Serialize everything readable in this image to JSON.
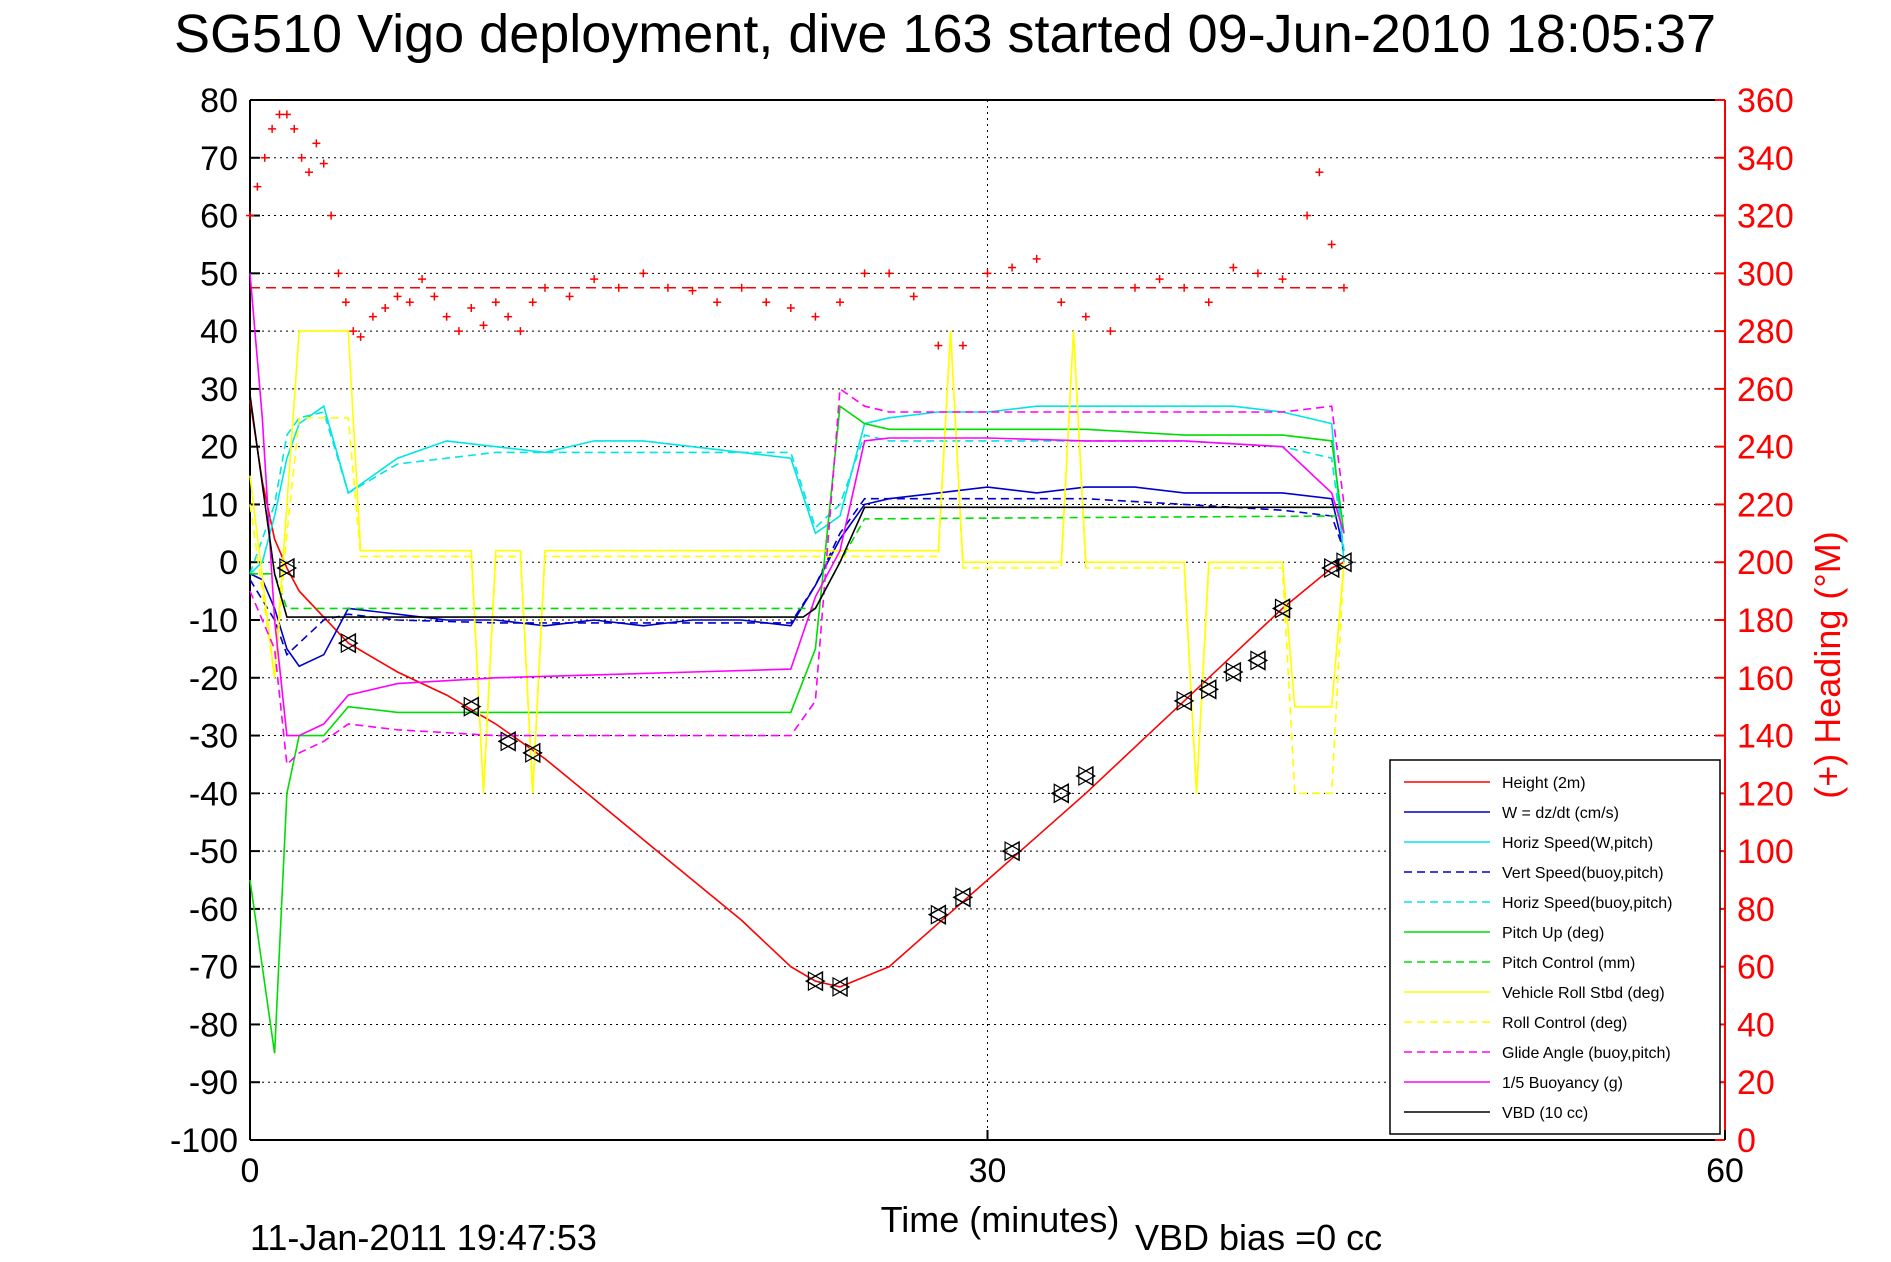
{
  "chart_data": {
    "type": "line",
    "title": "SG510 Vigo deployment, dive 163 started 09-Jun-2010 18:05:37",
    "xlabel": "Time (minutes)",
    "ylabel_right": "(+) Heading (°M)",
    "xlim": [
      0,
      60
    ],
    "ylim": [
      -100,
      80
    ],
    "y2lim": [
      0,
      360
    ],
    "xticks": [
      "0",
      "30",
      "60"
    ],
    "yticks": [
      "80",
      "70",
      "60",
      "50",
      "40",
      "30",
      "20",
      "10",
      "0",
      "-10",
      "-20",
      "-30",
      "-40",
      "-50",
      "-60",
      "-70",
      "-80",
      "-90",
      "-100"
    ],
    "y2ticks": [
      "360",
      "340",
      "320",
      "300",
      "280",
      "260",
      "240",
      "220",
      "200",
      "180",
      "160",
      "140",
      "120",
      "100",
      "80",
      "60",
      "40",
      "20",
      "0"
    ],
    "grid": true,
    "legend_position": "bottom-right",
    "footer_date": "11-Jan-2011 19:47:53",
    "vbd_bias": "VBD bias =0 cc",
    "heading_reference": 295,
    "series": [
      {
        "name": "Height (2m)",
        "color": "#ff0000",
        "style": "solid",
        "x": [
          0,
          0.5,
          1,
          1.5,
          2,
          4,
          6,
          8,
          10,
          12,
          14,
          16,
          18,
          20,
          22,
          23,
          24,
          26,
          28,
          30,
          32,
          34,
          36,
          38,
          40,
          42,
          44,
          44.5
        ],
        "y": [
          28,
          14,
          4,
          -1,
          -5,
          -14,
          -19,
          -23,
          -28,
          -34,
          -41,
          -48,
          -55,
          -62,
          -70,
          -72.5,
          -73.5,
          -70,
          -62.5,
          -55,
          -47.5,
          -40,
          -32,
          -24,
          -16,
          -8,
          -1,
          0
        ]
      },
      {
        "name": "W = dz/dt (cm/s)",
        "color": "#0000cc",
        "style": "solid",
        "x": [
          0,
          0.5,
          1,
          1.5,
          2,
          3,
          4,
          6,
          8,
          10,
          12,
          14,
          16,
          18,
          20,
          22,
          23,
          24,
          25,
          26,
          28,
          30,
          32,
          34,
          36,
          38,
          40,
          42,
          44,
          44.5
        ],
        "y": [
          -2,
          -3,
          -8,
          -15,
          -18,
          -16,
          -8,
          -9,
          -10,
          -10,
          -11,
          -10,
          -11,
          -10,
          -10,
          -11,
          -4,
          4,
          10,
          11,
          12,
          13,
          12,
          13,
          13,
          12,
          12,
          12,
          11,
          2
        ]
      },
      {
        "name": "Horiz Speed(W,pitch)",
        "color": "#00e5e5",
        "style": "solid",
        "x": [
          0,
          0.5,
          1,
          1.5,
          2,
          3,
          4,
          5,
          6,
          8,
          10,
          12,
          14,
          16,
          18,
          20,
          22,
          23,
          24,
          25,
          26,
          28,
          30,
          32,
          34,
          36,
          38,
          40,
          42,
          44,
          44.5
        ],
        "y": [
          -2,
          0,
          8,
          18,
          24,
          27,
          12,
          15,
          18,
          21,
          20,
          19,
          21,
          21,
          20,
          19,
          18,
          5,
          8,
          24,
          25,
          26,
          26,
          27,
          27,
          27,
          27,
          27,
          26,
          24,
          0
        ]
      },
      {
        "name": "Vert Speed(buoy,pitch)",
        "color": "#0000cc",
        "style": "dashed",
        "x": [
          0,
          1,
          1.5,
          2,
          3,
          4,
          6,
          10,
          14,
          18,
          22,
          23,
          24,
          25,
          26,
          30,
          34,
          38,
          42,
          44,
          44.5
        ],
        "y": [
          -3,
          -10,
          -16,
          -14,
          -10,
          -9,
          -10,
          -10.5,
          -10.5,
          -10.5,
          -10.5,
          -4,
          5,
          11,
          11,
          11,
          11,
          10,
          9,
          8,
          2
        ]
      },
      {
        "name": "Horiz Speed(buoy,pitch)",
        "color": "#00e5e5",
        "style": "dashed",
        "x": [
          0,
          1,
          1.5,
          2,
          3,
          4,
          6,
          10,
          14,
          18,
          22,
          23,
          24,
          25,
          26,
          30,
          34,
          38,
          42,
          44,
          44.5
        ],
        "y": [
          -2,
          10,
          22,
          25,
          26,
          12,
          17,
          19,
          19,
          19,
          19,
          6,
          10,
          22,
          21,
          21,
          21,
          21,
          20,
          18,
          2
        ]
      },
      {
        "name": "Pitch Up (deg)",
        "color": "#00dd00",
        "style": "solid",
        "x": [
          0,
          0.5,
          1,
          1.5,
          2,
          3,
          4,
          6,
          10,
          14,
          18,
          22,
          23,
          24,
          25,
          26,
          30,
          34,
          38,
          42,
          44,
          44.5
        ],
        "y": [
          -55,
          -70,
          -85,
          -40,
          -30,
          -30,
          -25,
          -26,
          -26,
          -26,
          -26,
          -26,
          -15,
          27,
          24,
          23,
          23,
          23,
          22,
          22,
          21,
          5
        ]
      },
      {
        "name": "Pitch Control (mm)",
        "color": "#00dd00",
        "style": "dashed",
        "x": [
          0,
          1,
          1.5,
          22.5,
          23,
          24,
          25,
          44,
          44.5
        ],
        "y": [
          -2,
          -2,
          -8,
          -8,
          -8,
          0,
          7.5,
          8,
          8
        ]
      },
      {
        "name": "Vehicle Roll Stbd (deg)",
        "color": "#ffff00",
        "style": "solid",
        "x": [
          0,
          1,
          1.5,
          2,
          4,
          4.5,
          9,
          9.5,
          10,
          11,
          11.5,
          12,
          23,
          24,
          28,
          28.5,
          29,
          33,
          33.5,
          34,
          38,
          38.5,
          39,
          42,
          42.5,
          44,
          44.5
        ],
        "y": [
          15,
          -20,
          10,
          40,
          40,
          2,
          2,
          -40,
          2,
          2,
          -40,
          2,
          2,
          2,
          2,
          40,
          0,
          0,
          40,
          0,
          0,
          -40,
          0,
          0,
          -25,
          -25,
          0
        ]
      },
      {
        "name": "Roll Control (deg)",
        "color": "#ffff00",
        "style": "dashed",
        "x": [
          0,
          1,
          1.5,
          2,
          4,
          4.5,
          9,
          9.5,
          10,
          11,
          11.5,
          12,
          23,
          24,
          28,
          28.5,
          29,
          33,
          33.5,
          34,
          38,
          38.5,
          39,
          42,
          42.5,
          44,
          44.5
        ],
        "y": [
          10,
          -20,
          5,
          25,
          25,
          1,
          1,
          -40,
          1,
          1,
          -40,
          1,
          1,
          1,
          1,
          40,
          -1,
          -1,
          40,
          -1,
          -1,
          -40,
          -1,
          -1,
          -40,
          -40,
          0
        ]
      },
      {
        "name": "Glide Angle (buoy,pitch)",
        "color": "#ff00ff",
        "style": "dashed",
        "x": [
          0,
          1,
          1.5,
          2,
          3,
          4,
          6,
          10,
          14,
          18,
          22,
          23,
          24,
          25,
          26,
          30,
          34,
          38,
          42,
          44,
          44.5
        ],
        "y": [
          -5,
          -15,
          -35,
          -33,
          -31,
          -28,
          -29,
          -30,
          -30,
          -30,
          -30,
          -24,
          30,
          27,
          26,
          26,
          26,
          26,
          26,
          27,
          10
        ]
      },
      {
        "name": "1/5 Buoyancy (g)",
        "color": "#ff00ff",
        "style": "solid",
        "x": [
          0,
          0.5,
          1,
          1.5,
          2,
          3,
          4,
          6,
          10,
          14,
          18,
          22,
          23,
          24,
          25,
          26,
          30,
          34,
          38,
          42,
          44,
          44.5
        ],
        "y": [
          50,
          25,
          -10,
          -30,
          -30,
          -28,
          -23,
          -21,
          -20,
          -19.5,
          -19,
          -18.5,
          -6,
          2,
          21,
          21.5,
          21.5,
          21,
          21,
          20,
          12,
          5
        ]
      },
      {
        "name": "VBD (10 cc)",
        "color": "#000000",
        "style": "solid",
        "x": [
          0,
          1,
          1.5,
          22.5,
          23,
          24,
          25,
          44,
          44.5
        ],
        "y": [
          29,
          -2,
          -9.5,
          -9.5,
          -8,
          0,
          9.5,
          9.5,
          9.5
        ]
      }
    ],
    "heading_series": {
      "name": "Heading",
      "color": "#ff0000",
      "marker": "+",
      "x": [
        0,
        0.3,
        0.6,
        0.9,
        1.2,
        1.5,
        1.8,
        2.1,
        2.4,
        2.7,
        3,
        3.3,
        3.6,
        3.9,
        4.2,
        4.5,
        5,
        5.5,
        6,
        6.5,
        7,
        7.5,
        8,
        8.5,
        9,
        9.5,
        10,
        10.5,
        11,
        11.5,
        12,
        13,
        14,
        15,
        16,
        17,
        18,
        19,
        20,
        21,
        22,
        23,
        24,
        25,
        26,
        27,
        28,
        29,
        30,
        31,
        32,
        33,
        34,
        35,
        36,
        37,
        38,
        39,
        40,
        41,
        42,
        43,
        43.5,
        44,
        44.5
      ],
      "y": [
        320,
        330,
        340,
        350,
        355,
        355,
        350,
        340,
        335,
        345,
        338,
        320,
        300,
        290,
        280,
        278,
        285,
        288,
        292,
        290,
        298,
        292,
        285,
        280,
        288,
        282,
        290,
        285,
        280,
        290,
        295,
        292,
        298,
        295,
        300,
        295,
        294,
        290,
        295,
        290,
        288,
        285,
        290,
        300,
        300,
        292,
        275,
        275,
        300,
        302,
        305,
        290,
        285,
        280,
        295,
        298,
        295,
        290,
        302,
        300,
        298,
        320,
        335,
        310,
        295
      ]
    },
    "markers": {
      "name": "Height markers",
      "color": "#000000",
      "x": [
        1.5,
        4,
        9,
        10.5,
        11.5,
        23,
        24,
        28,
        29,
        31,
        33,
        34,
        38,
        39,
        40,
        41,
        42,
        44,
        44.5
      ],
      "y": [
        -1,
        -14,
        -25,
        -31,
        -33,
        -72.5,
        -73.5,
        -61,
        -58,
        -50,
        -40,
        -37,
        -24,
        -22,
        -19,
        -17,
        -8,
        -1,
        0
      ]
    }
  }
}
